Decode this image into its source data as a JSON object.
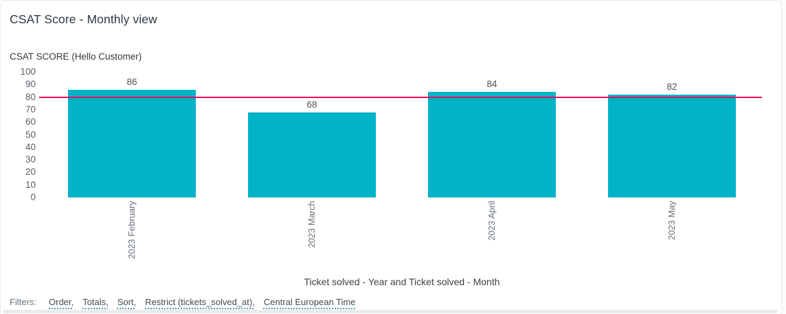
{
  "window": {
    "title": "CSAT Score - Monthly view"
  },
  "chart_data": {
    "type": "bar",
    "title": "CSAT SCORE (Hello Customer)",
    "categories": [
      "2023 February",
      "2023 March",
      "2023 April",
      "2023 May"
    ],
    "values": [
      86,
      68,
      84,
      82
    ],
    "xlabel": "Ticket solved - Year and Ticket solved - Month",
    "ylabel": "",
    "ylim": [
      0,
      100
    ],
    "yticks": [
      0,
      10,
      20,
      30,
      40,
      50,
      60,
      70,
      80,
      90,
      100
    ],
    "grid": false,
    "legend": "none",
    "bar_color": "#00b3c6",
    "value_label_color": "#4b4f54",
    "reference_line": {
      "value": 80,
      "color": "#ec0b5f"
    }
  },
  "filters": {
    "label": "Filters:",
    "items": [
      "Order,",
      "Totals,",
      "Sort,",
      "Restrict (tickets_solved_at),",
      "Central European Time"
    ]
  }
}
